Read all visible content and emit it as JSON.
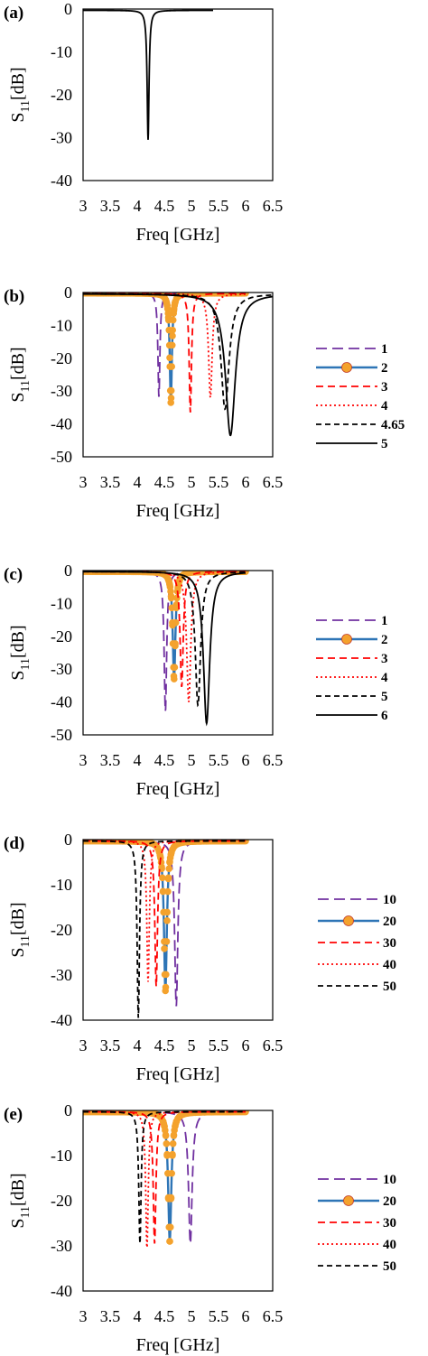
{
  "figure": {
    "background": "#ffffff"
  },
  "chart_data": [
    {
      "type": "line",
      "panel_label": "(a)",
      "xlabel": "Freq [GHz]",
      "ylabel_main": "S",
      "ylabel_sub": "11",
      "ylabel_suffix": "[dB]",
      "xlim": [
        3,
        6.5
      ],
      "ylim": [
        -40,
        0
      ],
      "xticks": [
        "3",
        "3.5",
        "4",
        "4.5",
        "5",
        "5.5",
        "6",
        "6.5"
      ],
      "yticks": [
        "0",
        "-10",
        "-20",
        "-30",
        "-40"
      ],
      "x_range": [
        3,
        5.4
      ],
      "series": [
        {
          "color": "#000000",
          "dash": "",
          "marker": false,
          "fo": 4.2,
          "depth": -30.5,
          "bw": 0.021,
          "base": -0.3
        }
      ]
    },
    {
      "type": "line",
      "panel_label": "(b)",
      "xlabel": "Freq [GHz]",
      "ylabel_main": "S",
      "ylabel_sub": "11",
      "ylabel_suffix": "[dB]",
      "xlim": [
        3,
        6.5
      ],
      "ylim": [
        -50,
        0
      ],
      "xticks": [
        "3",
        "3.5",
        "4",
        "4.5",
        "5",
        "5.5",
        "6",
        "6.5"
      ],
      "yticks": [
        "0",
        "-10",
        "-20",
        "-30",
        "-40",
        "-50"
      ],
      "x_range": [
        3,
        6
      ],
      "series": [
        {
          "name": "1",
          "color": "#7030a0",
          "dash": "12,6",
          "marker": false,
          "fo": 4.4,
          "depth": -32,
          "bw": 0.022,
          "base": -0.2
        },
        {
          "name": "2",
          "color": "#2e75b6",
          "dash": "",
          "marker": true,
          "marker_color": "#f4a22d",
          "fo": 4.62,
          "depth": -33.5,
          "bw": 0.024,
          "base": -0.2
        },
        {
          "name": "3",
          "color": "#ff0000",
          "dash": "8,5",
          "marker": false,
          "fo": 4.98,
          "depth": -36.5,
          "bw": 0.026,
          "base": -0.3
        },
        {
          "name": "4",
          "color": "#ff0000",
          "dash": "2,3",
          "marker": false,
          "fo": 5.35,
          "depth": -32,
          "bw": 0.04,
          "base": -0.4
        },
        {
          "name": "4.65",
          "color": "#000000",
          "dash": "6,4",
          "marker": false,
          "fo": 5.62,
          "depth": -35.5,
          "bw": 0.09,
          "base": -0.4,
          "x_end": 6.5
        },
        {
          "name": "5",
          "color": "#000000",
          "dash": "",
          "marker": false,
          "fo": 5.72,
          "depth": -43.5,
          "bw": 0.11,
          "base": -0.4,
          "x_end": 6.5
        }
      ]
    },
    {
      "type": "line",
      "panel_label": "(c)",
      "xlabel": "Freq [GHz]",
      "ylabel_main": "S",
      "ylabel_sub": "11",
      "ylabel_suffix": "[dB]",
      "xlim": [
        3,
        6.5
      ],
      "ylim": [
        -50,
        0
      ],
      "xticks": [
        "3",
        "3.5",
        "4",
        "4.5",
        "5",
        "5.5",
        "6",
        "6.5"
      ],
      "yticks": [
        "0",
        "-10",
        "-20",
        "-30",
        "-40",
        "-50"
      ],
      "x_range": [
        3,
        6
      ],
      "series": [
        {
          "name": "1",
          "color": "#7030a0",
          "dash": "12,6",
          "marker": false,
          "fo": 4.52,
          "depth": -43,
          "bw": 0.028,
          "base": -0.3
        },
        {
          "name": "2",
          "color": "#2e75b6",
          "dash": "",
          "marker": true,
          "marker_color": "#f4a22d",
          "fo": 4.68,
          "depth": -33,
          "bw": 0.03,
          "base": -0.3
        },
        {
          "name": "3",
          "color": "#ff0000",
          "dash": "8,5",
          "marker": false,
          "fo": 4.82,
          "depth": -35.5,
          "bw": 0.035,
          "base": -0.3
        },
        {
          "name": "4",
          "color": "#ff0000",
          "dash": "2,3",
          "marker": false,
          "fo": 4.95,
          "depth": -40,
          "bw": 0.045,
          "base": -0.3
        },
        {
          "name": "5",
          "color": "#000000",
          "dash": "6,4",
          "marker": false,
          "fo": 5.12,
          "depth": -41,
          "bw": 0.06,
          "base": -0.3
        },
        {
          "name": "6",
          "color": "#000000",
          "dash": "",
          "marker": false,
          "fo": 5.28,
          "depth": -46.5,
          "bw": 0.07,
          "base": -0.3
        }
      ]
    },
    {
      "type": "line",
      "panel_label": "(d)",
      "xlabel": "Freq [GHz]",
      "ylabel_main": "S",
      "ylabel_sub": "11",
      "ylabel_suffix": "[dB]",
      "xlim": [
        3,
        6.5
      ],
      "ylim": [
        -40,
        0
      ],
      "xticks": [
        "3",
        "3.5",
        "4",
        "4.5",
        "5",
        "5.5",
        "6",
        "6.5"
      ],
      "yticks": [
        "0",
        "-10",
        "-20",
        "-30",
        "-40"
      ],
      "x_range": [
        3,
        6
      ],
      "series": [
        {
          "name": "10",
          "color": "#7030a0",
          "dash": "12,6",
          "marker": false,
          "fo": 4.72,
          "depth": -37,
          "bw": 0.035,
          "base": -0.3
        },
        {
          "name": "20",
          "color": "#2e75b6",
          "dash": "",
          "marker": true,
          "marker_color": "#f4a22d",
          "fo": 4.52,
          "depth": -33.5,
          "bw": 0.032,
          "base": -0.3
        },
        {
          "name": "30",
          "color": "#ff0000",
          "dash": "8,5",
          "marker": false,
          "fo": 4.35,
          "depth": -32.5,
          "bw": 0.03,
          "base": -0.3
        },
        {
          "name": "40",
          "color": "#ff0000",
          "dash": "2,3",
          "marker": false,
          "fo": 4.2,
          "depth": -31.5,
          "bw": 0.028,
          "base": -0.3
        },
        {
          "name": "50",
          "color": "#000000",
          "dash": "6,4",
          "marker": false,
          "fo": 4.02,
          "depth": -39.5,
          "bw": 0.026,
          "base": -0.3
        }
      ]
    },
    {
      "type": "line",
      "panel_label": "(e)",
      "xlabel": "Freq [GHz]",
      "ylabel_main": "S",
      "ylabel_sub": "11",
      "ylabel_suffix": "[dB]",
      "xlim": [
        3,
        6.5
      ],
      "ylim": [
        -40,
        0
      ],
      "xticks": [
        "3",
        "3.5",
        "4",
        "4.5",
        "5",
        "5.5",
        "6",
        "6.5"
      ],
      "yticks": [
        "0",
        "-10",
        "-20",
        "-30",
        "-40"
      ],
      "x_range": [
        3,
        6
      ],
      "series": [
        {
          "name": "10",
          "color": "#7030a0",
          "dash": "12,6",
          "marker": false,
          "fo": 4.98,
          "depth": -29.5,
          "bw": 0.04,
          "base": -0.3
        },
        {
          "name": "20",
          "color": "#2e75b6",
          "dash": "",
          "marker": true,
          "marker_color": "#f4a22d",
          "fo": 4.6,
          "depth": -29,
          "bw": 0.035,
          "base": -0.3
        },
        {
          "name": "30",
          "color": "#ff0000",
          "dash": "8,5",
          "marker": false,
          "fo": 4.32,
          "depth": -29.5,
          "bw": 0.03,
          "base": -0.3
        },
        {
          "name": "40",
          "color": "#ff0000",
          "dash": "2,3",
          "marker": false,
          "fo": 4.18,
          "depth": -30.5,
          "bw": 0.028,
          "base": -0.3
        },
        {
          "name": "50",
          "color": "#000000",
          "dash": "6,4",
          "marker": false,
          "fo": 4.05,
          "depth": -29.5,
          "bw": 0.026,
          "base": -0.3
        }
      ]
    }
  ]
}
